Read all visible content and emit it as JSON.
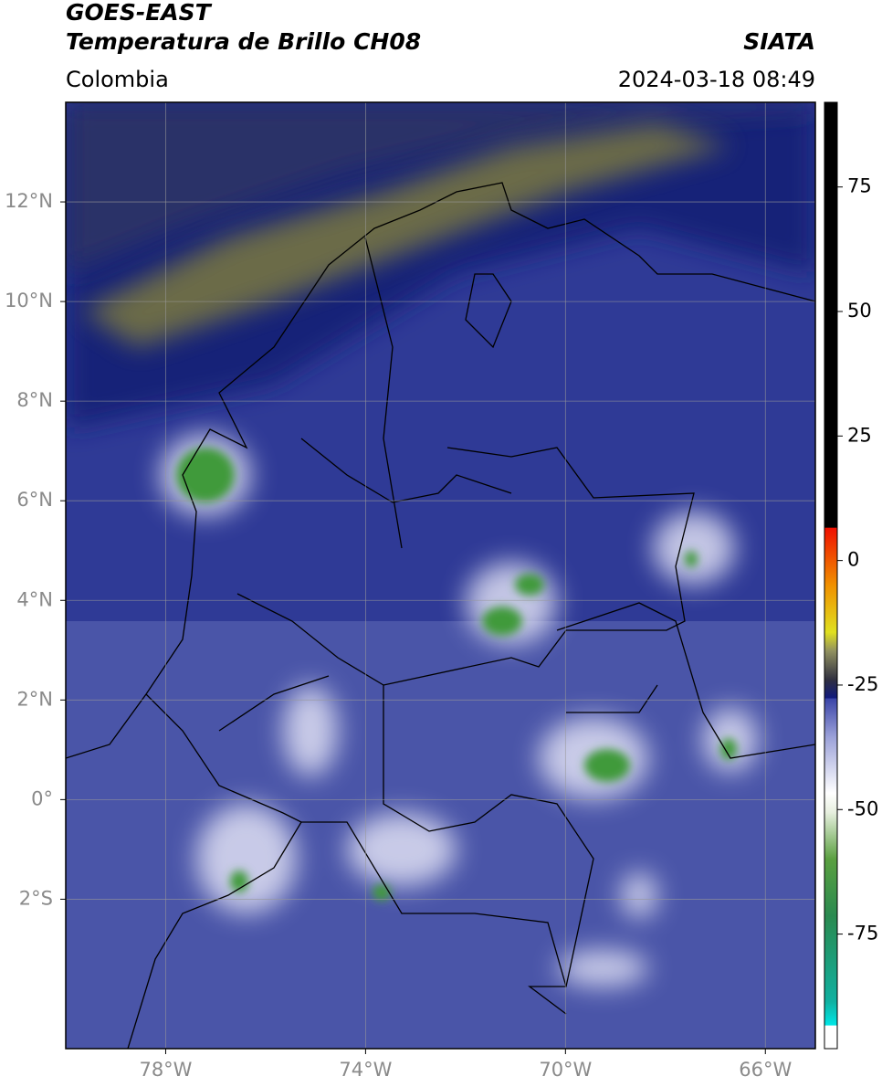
{
  "header": {
    "title": "GOES-EAST",
    "subtitle": "Temperatura de Brillo CH08",
    "region": "Colombia",
    "source": "SIATA",
    "datetime": "2024-03-18 08:49"
  },
  "map": {
    "xlim": [
      -80,
      -65
    ],
    "ylim": [
      -5,
      14
    ],
    "xticks": [
      {
        "value": -78,
        "label": "78°W"
      },
      {
        "value": -74,
        "label": "74°W"
      },
      {
        "value": -70,
        "label": "70°W"
      },
      {
        "value": -66,
        "label": "66°W"
      }
    ],
    "yticks": [
      {
        "value": 12,
        "label": "12°N"
      },
      {
        "value": 10,
        "label": "10°N"
      },
      {
        "value": 8,
        "label": "8°N"
      },
      {
        "value": 6,
        "label": "6°N"
      },
      {
        "value": 4,
        "label": "4°N"
      },
      {
        "value": 2,
        "label": "2°N"
      },
      {
        "value": 0,
        "label": "0°"
      },
      {
        "value": -2,
        "label": "2°S"
      }
    ],
    "grid": true
  },
  "colorbar": {
    "lim": [
      -98,
      92
    ],
    "ticks": [
      75,
      50,
      25,
      0,
      -25,
      -50,
      -75
    ]
  }
}
